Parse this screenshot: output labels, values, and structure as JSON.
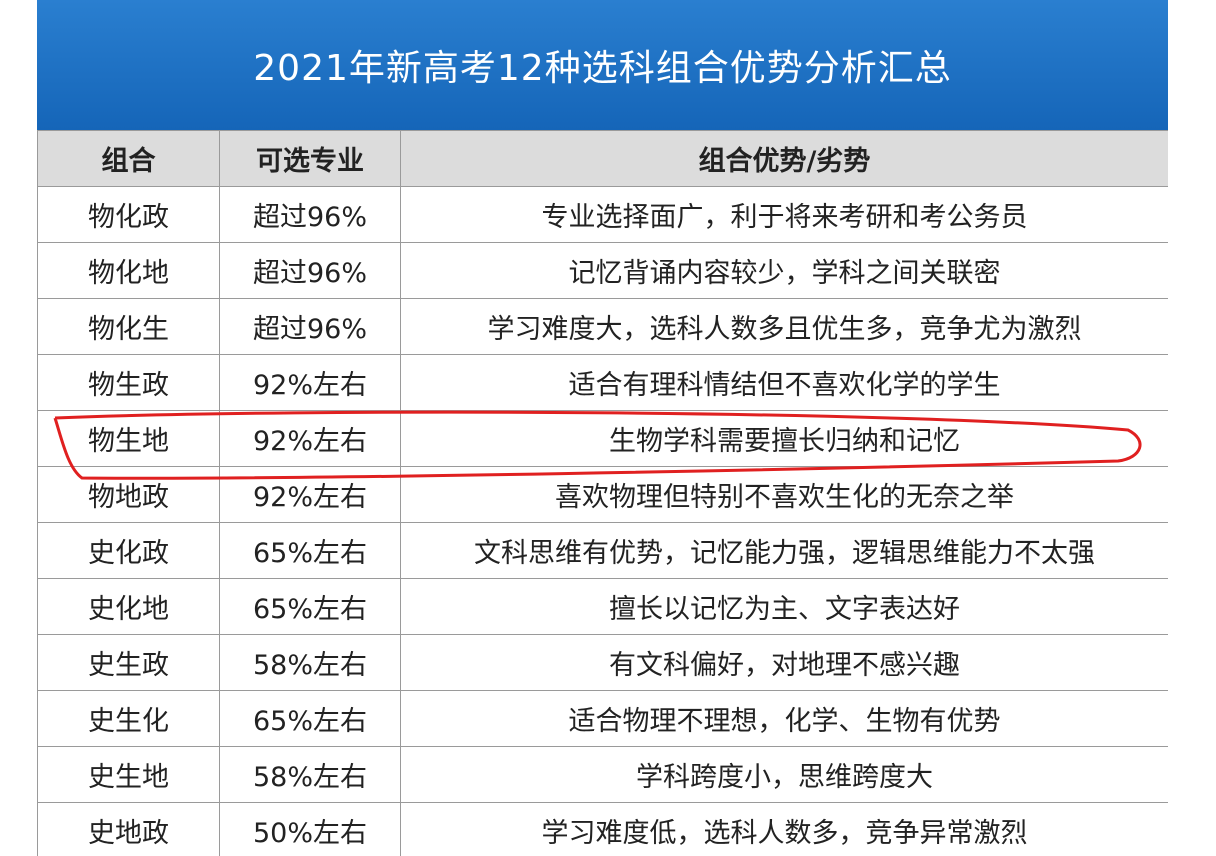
{
  "header": {
    "title": "2021年新高考12种选科组合优势分析汇总"
  },
  "table": {
    "columns": [
      "组合",
      "可选专业",
      "组合优势/劣势"
    ],
    "rows": [
      [
        "物化政",
        "超过96%",
        "专业选择面广，利于将来考研和考公务员"
      ],
      [
        "物化地",
        "超过96%",
        "记忆背诵内容较少，学科之间关联密"
      ],
      [
        "物化生",
        "超过96%",
        "学习难度大，选科人数多且优生多，竞争尤为激烈"
      ],
      [
        "物生政",
        "92%左右",
        "适合有理科情结但不喜欢化学的学生"
      ],
      [
        "物生地",
        "92%左右",
        "生物学科需要擅长归纳和记忆"
      ],
      [
        "物地政",
        "92%左右",
        "喜欢物理但特别不喜欢生化的无奈之举"
      ],
      [
        "史化政",
        "65%左右",
        "文科思维有优势，记忆能力强，逻辑思维能力不太强"
      ],
      [
        "史化地",
        "65%左右",
        "擅长以记忆为主、文字表达好"
      ],
      [
        "史生政",
        "58%左右",
        "有文科偏好，对地理不感兴趣"
      ],
      [
        "史生化",
        "65%左右",
        "适合物理不理想，化学、生物有优势"
      ],
      [
        "史生地",
        "58%左右",
        "学科跨度小，思维跨度大"
      ],
      [
        "史地政",
        "50%左右",
        "学习难度低，选科人数多，竞争异常激烈"
      ]
    ]
  }
}
